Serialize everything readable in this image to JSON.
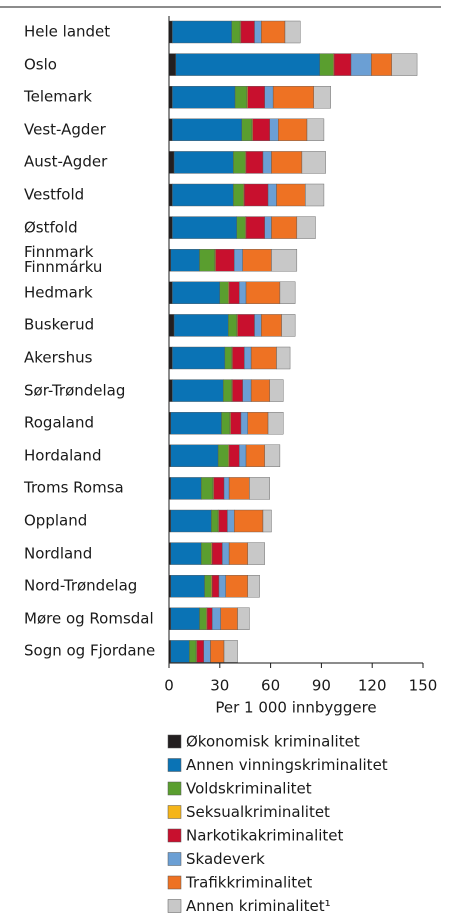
{
  "chart_data": {
    "type": "stacked-barh",
    "categories": [
      "Hele landet",
      "Oslo",
      "Telemark",
      "Vest-Agder",
      "Aust-Agder",
      "Vestfold",
      "Østfold",
      "Finnmark\nFinnmárku",
      "Hedmark",
      "Buskerud",
      "Akershus",
      "Sør-Trøndelag",
      "Rogaland",
      "Hordaland",
      "Troms Romsa",
      "Oppland",
      "Nordland",
      "Nord-Trøndelag",
      "Møre og Romsdal",
      "Sogn og Fjordane"
    ],
    "series": [
      {
        "name": "Økonomisk kriminalitet",
        "color": "#231f20",
        "values": [
          2,
          4,
          2,
          2,
          3,
          2,
          2,
          1,
          2,
          3,
          2,
          2,
          1,
          1,
          1,
          1,
          1,
          1,
          1,
          1
        ]
      },
      {
        "name": "Annen vinningskriminalitet",
        "color": "#0a73b5",
        "values": [
          35,
          85,
          37,
          41,
          35,
          36,
          38,
          17,
          28,
          32,
          31,
          30,
          30,
          28,
          18,
          24,
          18,
          20,
          17,
          11
        ]
      },
      {
        "name": "Voldskriminalitet",
        "color": "#5a9e2f",
        "values": [
          5,
          8,
          7,
          6,
          7,
          6,
          5,
          9,
          5,
          5,
          4,
          5,
          5,
          6,
          7,
          4,
          6,
          4,
          4,
          4
        ]
      },
      {
        "name": "Seksualkriminalitet",
        "color": "#f5b519",
        "values": [
          0.5,
          0.5,
          0.5,
          0.5,
          0.5,
          0.5,
          0.5,
          0.5,
          0.5,
          0.5,
          0.5,
          0.5,
          0.5,
          0.5,
          0.5,
          0.5,
          0.5,
          0.5,
          0.5,
          0.5
        ]
      },
      {
        "name": "Narkotikakriminalitet",
        "color": "#c8102e",
        "values": [
          8,
          10,
          10,
          10,
          10,
          14,
          11,
          11,
          6,
          10,
          7,
          6,
          6,
          6,
          6,
          5,
          6,
          4,
          3,
          4
        ]
      },
      {
        "name": "Skadeverk",
        "color": "#6b9fd4",
        "values": [
          4,
          12,
          5,
          5,
          5,
          5,
          4,
          5,
          4,
          4,
          4,
          5,
          4,
          4,
          3,
          4,
          4,
          4,
          5,
          4
        ]
      },
      {
        "name": "Trafikkriminalitet",
        "color": "#ee7223",
        "values": [
          14,
          12,
          24,
          17,
          18,
          17,
          15,
          17,
          20,
          12,
          15,
          11,
          12,
          11,
          12,
          17,
          11,
          13,
          10,
          8
        ]
      },
      {
        "name": "Annen kriminalitet¹",
        "color": "#c8c8c8",
        "values": [
          9,
          15,
          10,
          10,
          14,
          11,
          11,
          15,
          9,
          8,
          8,
          8,
          9,
          9,
          12,
          5,
          10,
          7,
          7,
          8
        ]
      }
    ],
    "xlim": [
      0,
      150
    ],
    "xticks": [
      0,
      30,
      60,
      90,
      120,
      150
    ],
    "xlabel": "Per 1 000 innbyggere"
  }
}
